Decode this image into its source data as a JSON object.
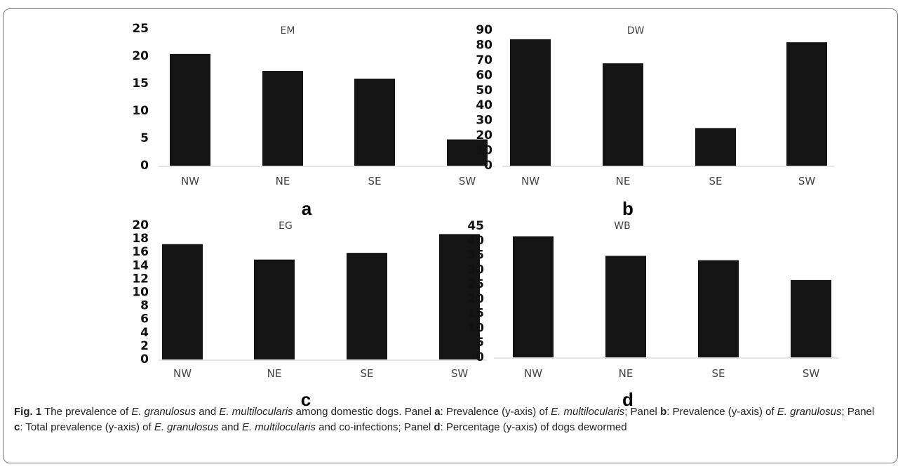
{
  "chart_data": [
    {
      "type": "bar",
      "title": "EM",
      "panel_label": "a",
      "categories": [
        "NW",
        "NE",
        "SE",
        "SW"
      ],
      "values": [
        20.4,
        17.3,
        15.9,
        4.8
      ],
      "yticks": [
        0,
        5,
        10,
        15,
        20,
        25
      ],
      "ylim": [
        0,
        25
      ],
      "bar_color": "#141414"
    },
    {
      "type": "bar",
      "title": "DW",
      "panel_label": "b",
      "categories": [
        "NW",
        "NE",
        "SE",
        "SW"
      ],
      "values": [
        84,
        68,
        25,
        82
      ],
      "yticks": [
        0,
        10,
        20,
        30,
        40,
        50,
        60,
        70,
        80,
        90
      ],
      "ylim": [
        0,
        90
      ],
      "bar_color": "#141414"
    },
    {
      "type": "bar",
      "title": "EG",
      "panel_label": "c",
      "categories": [
        "NW",
        "NE",
        "SE",
        "SW"
      ],
      "values": [
        17.2,
        14.9,
        15.9,
        18.7
      ],
      "yticks": [
        0,
        2,
        4,
        6,
        8,
        10,
        12,
        14,
        16,
        18,
        20
      ],
      "ylim": [
        0,
        20
      ],
      "bar_color": "#141414"
    },
    {
      "type": "bar",
      "title": "WB",
      "panel_label": "d",
      "categories": [
        "NW",
        "NE",
        "SE",
        "SW"
      ],
      "values": [
        41.5,
        34.8,
        33.3,
        26.5
      ],
      "yticks": [
        0,
        5,
        10,
        15,
        20,
        25,
        30,
        35,
        40,
        45
      ],
      "ylim": [
        0,
        45
      ],
      "bar_color": "#141414"
    }
  ],
  "caption": {
    "fig_label": "Fig. 1",
    "t1": " The prevalence of ",
    "sp_g": "E. granulosus",
    "t2": " and ",
    "sp_m": "E. multilocularis",
    "t3": " among domestic dogs. Panel ",
    "pa": "a",
    "t4": ": Prevalence (y-axis) of ",
    "t5": "; Panel ",
    "pb": "b",
    "t6": ": Prevalence (y-axis) of ",
    "t7": "; Panel ",
    "pc": "c",
    "t8": ": Total prevalence (y-axis) of ",
    "t9": " and ",
    "t10": " and co-infections; Panel ",
    "pd": "d",
    "t11": ": Percentage (y-axis) of dogs dewormed"
  }
}
